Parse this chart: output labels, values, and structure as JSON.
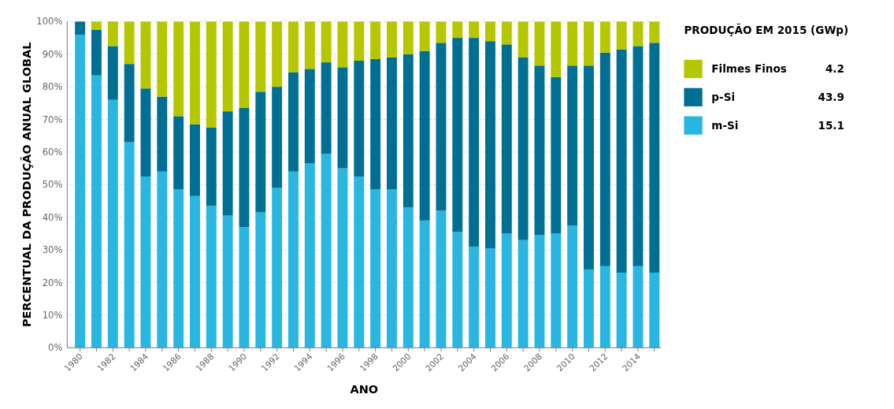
{
  "chart_data": {
    "type": "bar",
    "stacked": true,
    "xlabel": "ANO",
    "ylabel": "PERCENTUAL DA PRODUÇÃO ANUAL GLOBAL",
    "legend_title": "PRODUÇÃO EM 2015 (GWp)",
    "legend": "right",
    "grid": "y",
    "categories": [
      "1980",
      null,
      "1982",
      null,
      "1984",
      null,
      "1986",
      null,
      "1988",
      null,
      "1990",
      null,
      "1992",
      null,
      "1994",
      null,
      "1996",
      null,
      "1998",
      null,
      "2000",
      null,
      "2002",
      null,
      "2004",
      null,
      "2006",
      null,
      "2008",
      null,
      "2010",
      null,
      "2012",
      null,
      "2014",
      null
    ],
    "ylim": [
      0,
      100
    ],
    "yticks": [
      {
        "value": 0,
        "label": "0%"
      },
      {
        "value": 10,
        "label": "10%"
      },
      {
        "value": 20,
        "label": "20%"
      },
      {
        "value": 30,
        "label": "30%"
      },
      {
        "value": 40,
        "label": "40%"
      },
      {
        "value": 50,
        "label": "50%"
      },
      {
        "value": 60,
        "label": "60%"
      },
      {
        "value": 70,
        "label": "70%"
      },
      {
        "value": 80,
        "label": "80%"
      },
      {
        "value": 90,
        "label": "90%"
      },
      {
        "value": 100,
        "label": "100%"
      }
    ],
    "series": [
      {
        "name": "m-Si",
        "color": "#29b6e0",
        "values": [
          96,
          83.5,
          76,
          63,
          52.5,
          54,
          48.5,
          46.5,
          43.5,
          40.5,
          37,
          41.5,
          49,
          54,
          56.5,
          59.5,
          55,
          52.5,
          48.5,
          48.5,
          43,
          39,
          42,
          35.5,
          31,
          30.5,
          35,
          33,
          34.5,
          35,
          37.5,
          24,
          25,
          23,
          25,
          23
        ]
      },
      {
        "name": "p-Si",
        "color": "#006f94",
        "values": [
          4,
          14,
          16.5,
          24,
          27,
          23,
          22.5,
          22,
          24,
          32,
          36.5,
          37,
          31,
          30.5,
          29,
          28,
          31,
          35.5,
          40,
          40.5,
          47,
          52,
          51.5,
          59.5,
          64,
          63.5,
          58,
          56,
          52,
          48,
          49,
          62.5,
          65.5,
          68.5,
          67.5,
          70.5
        ]
      },
      {
        "name": "Filmes Finos",
        "color": "#b5c700",
        "values": [
          0,
          2.5,
          7.5,
          13,
          20.5,
          23,
          29,
          31.5,
          32.5,
          27.5,
          26.5,
          21.5,
          20,
          15.5,
          14.5,
          12.5,
          14,
          12,
          11.5,
          11,
          10,
          9,
          6.5,
          5,
          5,
          6,
          7,
          11,
          13.5,
          17,
          13.5,
          13.5,
          9.5,
          8.5,
          7.5,
          6.5
        ]
      }
    ],
    "annotations": [
      "15.1",
      "43.9",
      "4.2"
    ]
  }
}
